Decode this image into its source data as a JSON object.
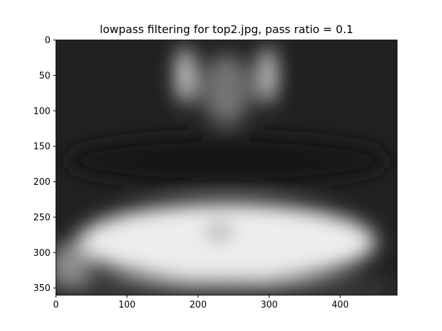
{
  "chart_data": {
    "type": "heatmap",
    "title": "lowpass filtering for top2.jpg, pass ratio = 0.1",
    "xlabel": "",
    "ylabel": "",
    "colormap": "gray",
    "image_width": 480,
    "image_height": 360,
    "xlim": [
      0,
      480
    ],
    "ylim": [
      360,
      0
    ],
    "x_ticks": [
      0,
      100,
      200,
      300,
      400
    ],
    "y_ticks": [
      0,
      50,
      100,
      150,
      200,
      250,
      300,
      350
    ],
    "grid": false,
    "legend": "none",
    "features": [
      {
        "name": "background",
        "intensity": 0.13
      },
      {
        "name": "left-bright-column",
        "x": 182,
        "y": 50,
        "rx": 12,
        "ry": 40,
        "intensity": 0.92
      },
      {
        "name": "right-bright-column",
        "x": 298,
        "y": 50,
        "rx": 12,
        "ry": 40,
        "intensity": 0.88
      },
      {
        "name": "center-top-glow",
        "x": 240,
        "y": 70,
        "rx": 35,
        "ry": 50,
        "intensity": 0.45
      },
      {
        "name": "dark-band",
        "x": 240,
        "y": 170,
        "rx": 230,
        "ry": 35,
        "intensity": 0.08
      },
      {
        "name": "bright-floor",
        "x": 240,
        "y": 285,
        "rx": 210,
        "ry": 55,
        "intensity": 0.93
      },
      {
        "name": "floor-center-spot",
        "x": 230,
        "y": 270,
        "rx": 18,
        "ry": 10,
        "intensity": 0.55
      },
      {
        "name": "lower-left-corner",
        "x": 20,
        "y": 320,
        "rx": 30,
        "ry": 35,
        "intensity": 0.55
      },
      {
        "name": "bottom-strip",
        "x": 240,
        "y": 350,
        "rx": 240,
        "ry": 12,
        "intensity": 0.3
      }
    ]
  }
}
